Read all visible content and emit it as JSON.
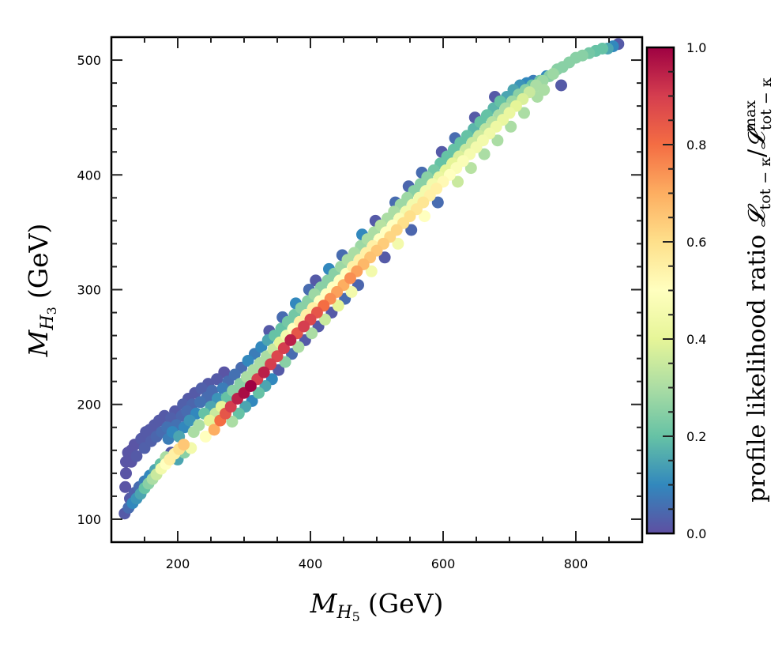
{
  "chart_data": {
    "type": "scatter",
    "title": "",
    "xlabel": {
      "symbol": "M",
      "subscript": "H",
      "subsubscript": "5",
      "unit": "(GeV)"
    },
    "ylabel": {
      "symbol": "M",
      "subscript": "H",
      "subsubscript": "3",
      "unit": "(GeV)"
    },
    "xlim": [
      100,
      900
    ],
    "ylim": [
      80,
      520
    ],
    "xticks": [
      200,
      400,
      600,
      800
    ],
    "xtick_labels": [
      "200",
      "400",
      "600",
      "800"
    ],
    "xminor_step": 50,
    "yticks": [
      100,
      200,
      300,
      400,
      500
    ],
    "ytick_labels": [
      "100",
      "200",
      "300",
      "400",
      "500"
    ],
    "yminor_step": 20,
    "grid": false,
    "colorbar": {
      "label": "profile likelihood ratio 𝓛tot−κ/𝓛maxtot−κ",
      "label_text": "profile likelihood ratio ",
      "label_L": "𝓛",
      "label_sub": "tot − κ",
      "label_slash": "/",
      "label_sup": "max",
      "colormap": "Spectral_r",
      "range": [
        0.0,
        1.0
      ],
      "ticks": [
        0.0,
        0.2,
        0.4,
        0.6,
        0.8,
        1.0
      ],
      "tick_labels": [
        "0.0",
        "0.2",
        "0.4",
        "0.6",
        "0.8",
        "1.0"
      ],
      "minor_step": 0.05,
      "stops": [
        "#5e4fa2",
        "#3288bd",
        "#66c2a5",
        "#abdda4",
        "#e6f598",
        "#ffffbf",
        "#fee08b",
        "#fdae61",
        "#f46d43",
        "#d53e4f",
        "#9e0142"
      ]
    },
    "points_columns": [
      "M_H5",
      "M_H3",
      "likelihood_ratio"
    ],
    "points": [
      [
        120,
        105,
        0.02
      ],
      [
        126,
        110,
        0.05
      ],
      [
        132,
        114,
        0.1
      ],
      [
        138,
        118,
        0.12
      ],
      [
        144,
        122,
        0.15
      ],
      [
        150,
        127,
        0.2
      ],
      [
        156,
        131,
        0.25
      ],
      [
        162,
        135,
        0.3
      ],
      [
        168,
        139,
        0.35
      ],
      [
        175,
        144,
        0.45
      ],
      [
        182,
        148,
        0.5
      ],
      [
        188,
        152,
        0.55
      ],
      [
        195,
        157,
        0.55
      ],
      [
        202,
        161,
        0.6
      ],
      [
        209,
        165,
        0.65
      ],
      [
        128,
        118,
        0.02
      ],
      [
        135,
        123,
        0.03
      ],
      [
        142,
        128,
        0.05
      ],
      [
        150,
        133,
        0.08
      ],
      [
        158,
        138,
        0.1
      ],
      [
        166,
        143,
        0.15
      ],
      [
        174,
        148,
        0.2
      ],
      [
        182,
        154,
        0.3
      ],
      [
        190,
        158,
        0.02
      ],
      [
        200,
        152,
        0.15
      ],
      [
        210,
        158,
        0.25
      ],
      [
        220,
        162,
        0.45
      ],
      [
        121,
        128,
        0.01
      ],
      [
        122,
        140,
        0.01
      ],
      [
        122,
        150,
        0.01
      ],
      [
        125,
        158,
        0.01
      ],
      [
        130,
        150,
        0.01
      ],
      [
        130,
        160,
        0.01
      ],
      [
        135,
        165,
        0.01
      ],
      [
        138,
        155,
        0.02
      ],
      [
        145,
        170,
        0.02
      ],
      [
        150,
        162,
        0.03
      ],
      [
        152,
        176,
        0.02
      ],
      [
        158,
        178,
        0.02
      ],
      [
        160,
        168,
        0.03
      ],
      [
        165,
        182,
        0.02
      ],
      [
        168,
        172,
        0.04
      ],
      [
        172,
        186,
        0.02
      ],
      [
        176,
        176,
        0.05
      ],
      [
        180,
        190,
        0.02
      ],
      [
        184,
        180,
        0.06
      ],
      [
        186,
        170,
        0.08
      ],
      [
        190,
        188,
        0.03
      ],
      [
        192,
        176,
        0.1
      ],
      [
        196,
        194,
        0.02
      ],
      [
        198,
        182,
        0.06
      ],
      [
        202,
        172,
        0.15
      ],
      [
        206,
        190,
        0.04
      ],
      [
        208,
        200,
        0.03
      ],
      [
        210,
        180,
        0.1
      ],
      [
        214,
        194,
        0.05
      ],
      [
        216,
        205,
        0.02
      ],
      [
        218,
        186,
        0.12
      ],
      [
        222,
        200,
        0.04
      ],
      [
        224,
        176,
        0.3
      ],
      [
        226,
        210,
        0.02
      ],
      [
        228,
        192,
        0.1
      ],
      [
        232,
        182,
        0.3
      ],
      [
        234,
        202,
        0.06
      ],
      [
        236,
        214,
        0.03
      ],
      [
        240,
        192,
        0.2
      ],
      [
        242,
        172,
        0.5
      ],
      [
        244,
        206,
        0.05
      ],
      [
        246,
        218,
        0.02
      ],
      [
        248,
        186,
        0.4
      ],
      [
        250,
        198,
        0.15
      ],
      [
        252,
        212,
        0.05
      ],
      [
        255,
        178,
        0.7
      ],
      [
        257,
        192,
        0.35
      ],
      [
        259,
        222,
        0.02
      ],
      [
        260,
        205,
        0.12
      ],
      [
        264,
        186,
        0.8
      ],
      [
        266,
        198,
        0.4
      ],
      [
        268,
        214,
        0.08
      ],
      [
        270,
        228,
        0.01
      ],
      [
        272,
        192,
        0.85
      ],
      [
        274,
        206,
        0.2
      ],
      [
        276,
        220,
        0.05
      ],
      [
        280,
        198,
        0.9
      ],
      [
        282,
        185,
        0.3
      ],
      [
        283,
        212,
        0.25
      ],
      [
        286,
        226,
        0.06
      ],
      [
        290,
        205,
        0.95
      ],
      [
        292,
        192,
        0.2
      ],
      [
        294,
        218,
        0.25
      ],
      [
        296,
        232,
        0.05
      ],
      [
        300,
        210,
        0.98
      ],
      [
        302,
        198,
        0.15
      ],
      [
        304,
        224,
        0.3
      ],
      [
        306,
        238,
        0.1
      ],
      [
        310,
        216,
        1.0
      ],
      [
        312,
        203,
        0.1
      ],
      [
        314,
        230,
        0.3
      ],
      [
        316,
        244,
        0.08
      ],
      [
        320,
        222,
        0.9
      ],
      [
        322,
        210,
        0.2
      ],
      [
        324,
        236,
        0.3
      ],
      [
        326,
        250,
        0.1
      ],
      [
        330,
        228,
        0.95
      ],
      [
        332,
        216,
        0.15
      ],
      [
        334,
        242,
        0.3
      ],
      [
        336,
        256,
        0.15
      ],
      [
        338,
        264,
        0.02
      ],
      [
        340,
        235,
        0.9
      ],
      [
        342,
        222,
        0.1
      ],
      [
        344,
        248,
        0.35
      ],
      [
        346,
        260,
        0.2
      ],
      [
        350,
        242,
        0.88
      ],
      [
        352,
        230,
        0.02
      ],
      [
        354,
        254,
        0.4
      ],
      [
        356,
        266,
        0.2
      ],
      [
        358,
        276,
        0.05
      ],
      [
        360,
        249,
        0.9
      ],
      [
        362,
        237,
        0.25
      ],
      [
        364,
        260,
        0.45
      ],
      [
        366,
        272,
        0.22
      ],
      [
        370,
        256,
        0.95
      ],
      [
        372,
        244,
        0.05
      ],
      [
        374,
        266,
        0.5
      ],
      [
        376,
        278,
        0.22
      ],
      [
        378,
        288,
        0.1
      ],
      [
        380,
        262,
        0.85
      ],
      [
        382,
        250,
        0.3
      ],
      [
        384,
        272,
        0.55
      ],
      [
        386,
        284,
        0.25
      ],
      [
        390,
        268,
        0.9
      ],
      [
        392,
        256,
        0.02
      ],
      [
        394,
        278,
        0.55
      ],
      [
        396,
        290,
        0.25
      ],
      [
        398,
        300,
        0.05
      ],
      [
        400,
        274,
        0.88
      ],
      [
        402,
        262,
        0.3
      ],
      [
        404,
        284,
        0.55
      ],
      [
        406,
        296,
        0.28
      ],
      [
        408,
        308,
        0.02
      ],
      [
        410,
        280,
        0.85
      ],
      [
        412,
        268,
        0.02
      ],
      [
        414,
        290,
        0.5
      ],
      [
        416,
        302,
        0.25
      ],
      [
        420,
        286,
        0.8
      ],
      [
        422,
        274,
        0.35
      ],
      [
        424,
        296,
        0.5
      ],
      [
        426,
        308,
        0.25
      ],
      [
        428,
        318,
        0.1
      ],
      [
        430,
        292,
        0.75
      ],
      [
        432,
        280,
        0.02
      ],
      [
        434,
        302,
        0.5
      ],
      [
        436,
        314,
        0.25
      ],
      [
        440,
        298,
        0.72
      ],
      [
        442,
        286,
        0.4
      ],
      [
        444,
        308,
        0.5
      ],
      [
        446,
        320,
        0.28
      ],
      [
        448,
        330,
        0.05
      ],
      [
        450,
        304,
        0.7
      ],
      [
        452,
        292,
        0.05
      ],
      [
        454,
        314,
        0.5
      ],
      [
        456,
        326,
        0.3
      ],
      [
        460,
        310,
        0.75
      ],
      [
        462,
        298,
        0.45
      ],
      [
        464,
        320,
        0.55
      ],
      [
        466,
        332,
        0.3
      ],
      [
        470,
        316,
        0.72
      ],
      [
        472,
        304,
        0.04
      ],
      [
        474,
        326,
        0.55
      ],
      [
        476,
        338,
        0.28
      ],
      [
        478,
        348,
        0.1
      ],
      [
        480,
        322,
        0.68
      ],
      [
        484,
        332,
        0.55
      ],
      [
        486,
        344,
        0.3
      ],
      [
        490,
        328,
        0.66
      ],
      [
        492,
        316,
        0.45
      ],
      [
        494,
        338,
        0.55
      ],
      [
        496,
        350,
        0.3
      ],
      [
        498,
        360,
        0.02
      ],
      [
        500,
        334,
        0.65
      ],
      [
        504,
        344,
        0.5
      ],
      [
        506,
        356,
        0.32
      ],
      [
        510,
        340,
        0.64
      ],
      [
        512,
        328,
        0.02
      ],
      [
        514,
        350,
        0.5
      ],
      [
        516,
        362,
        0.3
      ],
      [
        520,
        346,
        0.62
      ],
      [
        524,
        356,
        0.5
      ],
      [
        526,
        368,
        0.3
      ],
      [
        528,
        376,
        0.05
      ],
      [
        530,
        352,
        0.62
      ],
      [
        532,
        340,
        0.45
      ],
      [
        534,
        362,
        0.48
      ],
      [
        536,
        374,
        0.28
      ],
      [
        540,
        358,
        0.6
      ],
      [
        544,
        368,
        0.45
      ],
      [
        546,
        380,
        0.28
      ],
      [
        548,
        390,
        0.04
      ],
      [
        550,
        364,
        0.6
      ],
      [
        552,
        352,
        0.04
      ],
      [
        554,
        374,
        0.45
      ],
      [
        556,
        386,
        0.25
      ],
      [
        560,
        370,
        0.58
      ],
      [
        564,
        380,
        0.45
      ],
      [
        566,
        392,
        0.25
      ],
      [
        568,
        402,
        0.05
      ],
      [
        570,
        376,
        0.58
      ],
      [
        572,
        364,
        0.5
      ],
      [
        574,
        386,
        0.45
      ],
      [
        576,
        398,
        0.25
      ],
      [
        580,
        382,
        0.55
      ],
      [
        584,
        392,
        0.45
      ],
      [
        586,
        404,
        0.22
      ],
      [
        590,
        388,
        0.55
      ],
      [
        592,
        376,
        0.05
      ],
      [
        594,
        398,
        0.42
      ],
      [
        596,
        410,
        0.2
      ],
      [
        598,
        420,
        0.02
      ],
      [
        600,
        394,
        0.52
      ],
      [
        604,
        404,
        0.4
      ],
      [
        606,
        416,
        0.2
      ],
      [
        610,
        400,
        0.5
      ],
      [
        614,
        410,
        0.4
      ],
      [
        616,
        422,
        0.2
      ],
      [
        618,
        432,
        0.05
      ],
      [
        620,
        406,
        0.48
      ],
      [
        622,
        394,
        0.35
      ],
      [
        624,
        416,
        0.38
      ],
      [
        626,
        428,
        0.2
      ],
      [
        630,
        412,
        0.48
      ],
      [
        634,
        422,
        0.35
      ],
      [
        636,
        434,
        0.2
      ],
      [
        640,
        418,
        0.46
      ],
      [
        642,
        406,
        0.32
      ],
      [
        644,
        428,
        0.35
      ],
      [
        646,
        440,
        0.18
      ],
      [
        648,
        450,
        0.02
      ],
      [
        650,
        424,
        0.45
      ],
      [
        654,
        434,
        0.35
      ],
      [
        656,
        446,
        0.2
      ],
      [
        660,
        430,
        0.45
      ],
      [
        662,
        418,
        0.3
      ],
      [
        664,
        440,
        0.33
      ],
      [
        666,
        452,
        0.2
      ],
      [
        670,
        436,
        0.44
      ],
      [
        674,
        446,
        0.32
      ],
      [
        676,
        458,
        0.18
      ],
      [
        678,
        468,
        0.02
      ],
      [
        680,
        442,
        0.43
      ],
      [
        682,
        430,
        0.3
      ],
      [
        684,
        452,
        0.3
      ],
      [
        686,
        464,
        0.2
      ],
      [
        690,
        448,
        0.42
      ],
      [
        694,
        458,
        0.3
      ],
      [
        696,
        468,
        0.15
      ],
      [
        700,
        454,
        0.42
      ],
      [
        702,
        442,
        0.3
      ],
      [
        704,
        464,
        0.28
      ],
      [
        706,
        474,
        0.15
      ],
      [
        710,
        460,
        0.4
      ],
      [
        714,
        470,
        0.25
      ],
      [
        716,
        478,
        0.12
      ],
      [
        720,
        466,
        0.38
      ],
      [
        722,
        454,
        0.3
      ],
      [
        724,
        474,
        0.25
      ],
      [
        726,
        480,
        0.1
      ],
      [
        730,
        472,
        0.35
      ],
      [
        734,
        478,
        0.2
      ],
      [
        736,
        482,
        0.08
      ],
      [
        740,
        478,
        0.3
      ],
      [
        742,
        468,
        0.3
      ],
      [
        746,
        482,
        0.22
      ],
      [
        750,
        482,
        0.28
      ],
      [
        752,
        474,
        0.3
      ],
      [
        756,
        486,
        0.1
      ],
      [
        760,
        486,
        0.25
      ],
      [
        766,
        488,
        0.28
      ],
      [
        772,
        492,
        0.25
      ],
      [
        778,
        478,
        0.02
      ],
      [
        780,
        494,
        0.25
      ],
      [
        790,
        498,
        0.25
      ],
      [
        800,
        502,
        0.25
      ],
      [
        810,
        504,
        0.25
      ],
      [
        820,
        506,
        0.22
      ],
      [
        830,
        508,
        0.2
      ],
      [
        840,
        510,
        0.2
      ],
      [
        848,
        510,
        0.15
      ],
      [
        856,
        512,
        0.1
      ],
      [
        864,
        514,
        0.02
      ]
    ]
  }
}
